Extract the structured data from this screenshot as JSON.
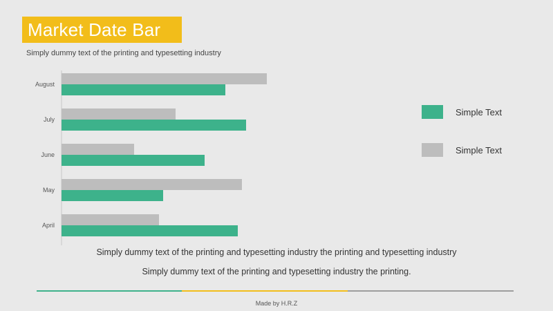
{
  "header": {
    "title": "Market Date Bar",
    "subtitle": "Simply dummy text of the printing and typesetting industry",
    "title_bg": "#f2bd1a"
  },
  "chart_data": {
    "type": "bar",
    "orientation": "horizontal",
    "categories": [
      "August",
      "July",
      "June",
      "May",
      "April"
    ],
    "series": [
      {
        "name": "Simple Text",
        "color": "#bdbdbd",
        "values": [
          99,
          55,
          35,
          87,
          47
        ]
      },
      {
        "name": "Simple Text",
        "color": "#3db28b",
        "values": [
          79,
          89,
          69,
          49,
          85
        ]
      }
    ],
    "xlim": [
      0,
      100
    ],
    "grid": false,
    "legend_position": "right"
  },
  "legend": [
    {
      "label": "Simple Text",
      "color": "#3db28b"
    },
    {
      "label": "Simple Text",
      "color": "#bdbdbd"
    }
  ],
  "captions": {
    "line1": "Simply dummy text of the printing and typesetting industry the printing and typesetting industry",
    "line2": "Simply dummy text of the printing and typesetting industry the printing."
  },
  "footer": {
    "text": "Made by H.R.Z",
    "colors": [
      "#3db28b",
      "#f2bd1a",
      "#9e9e9e"
    ]
  }
}
